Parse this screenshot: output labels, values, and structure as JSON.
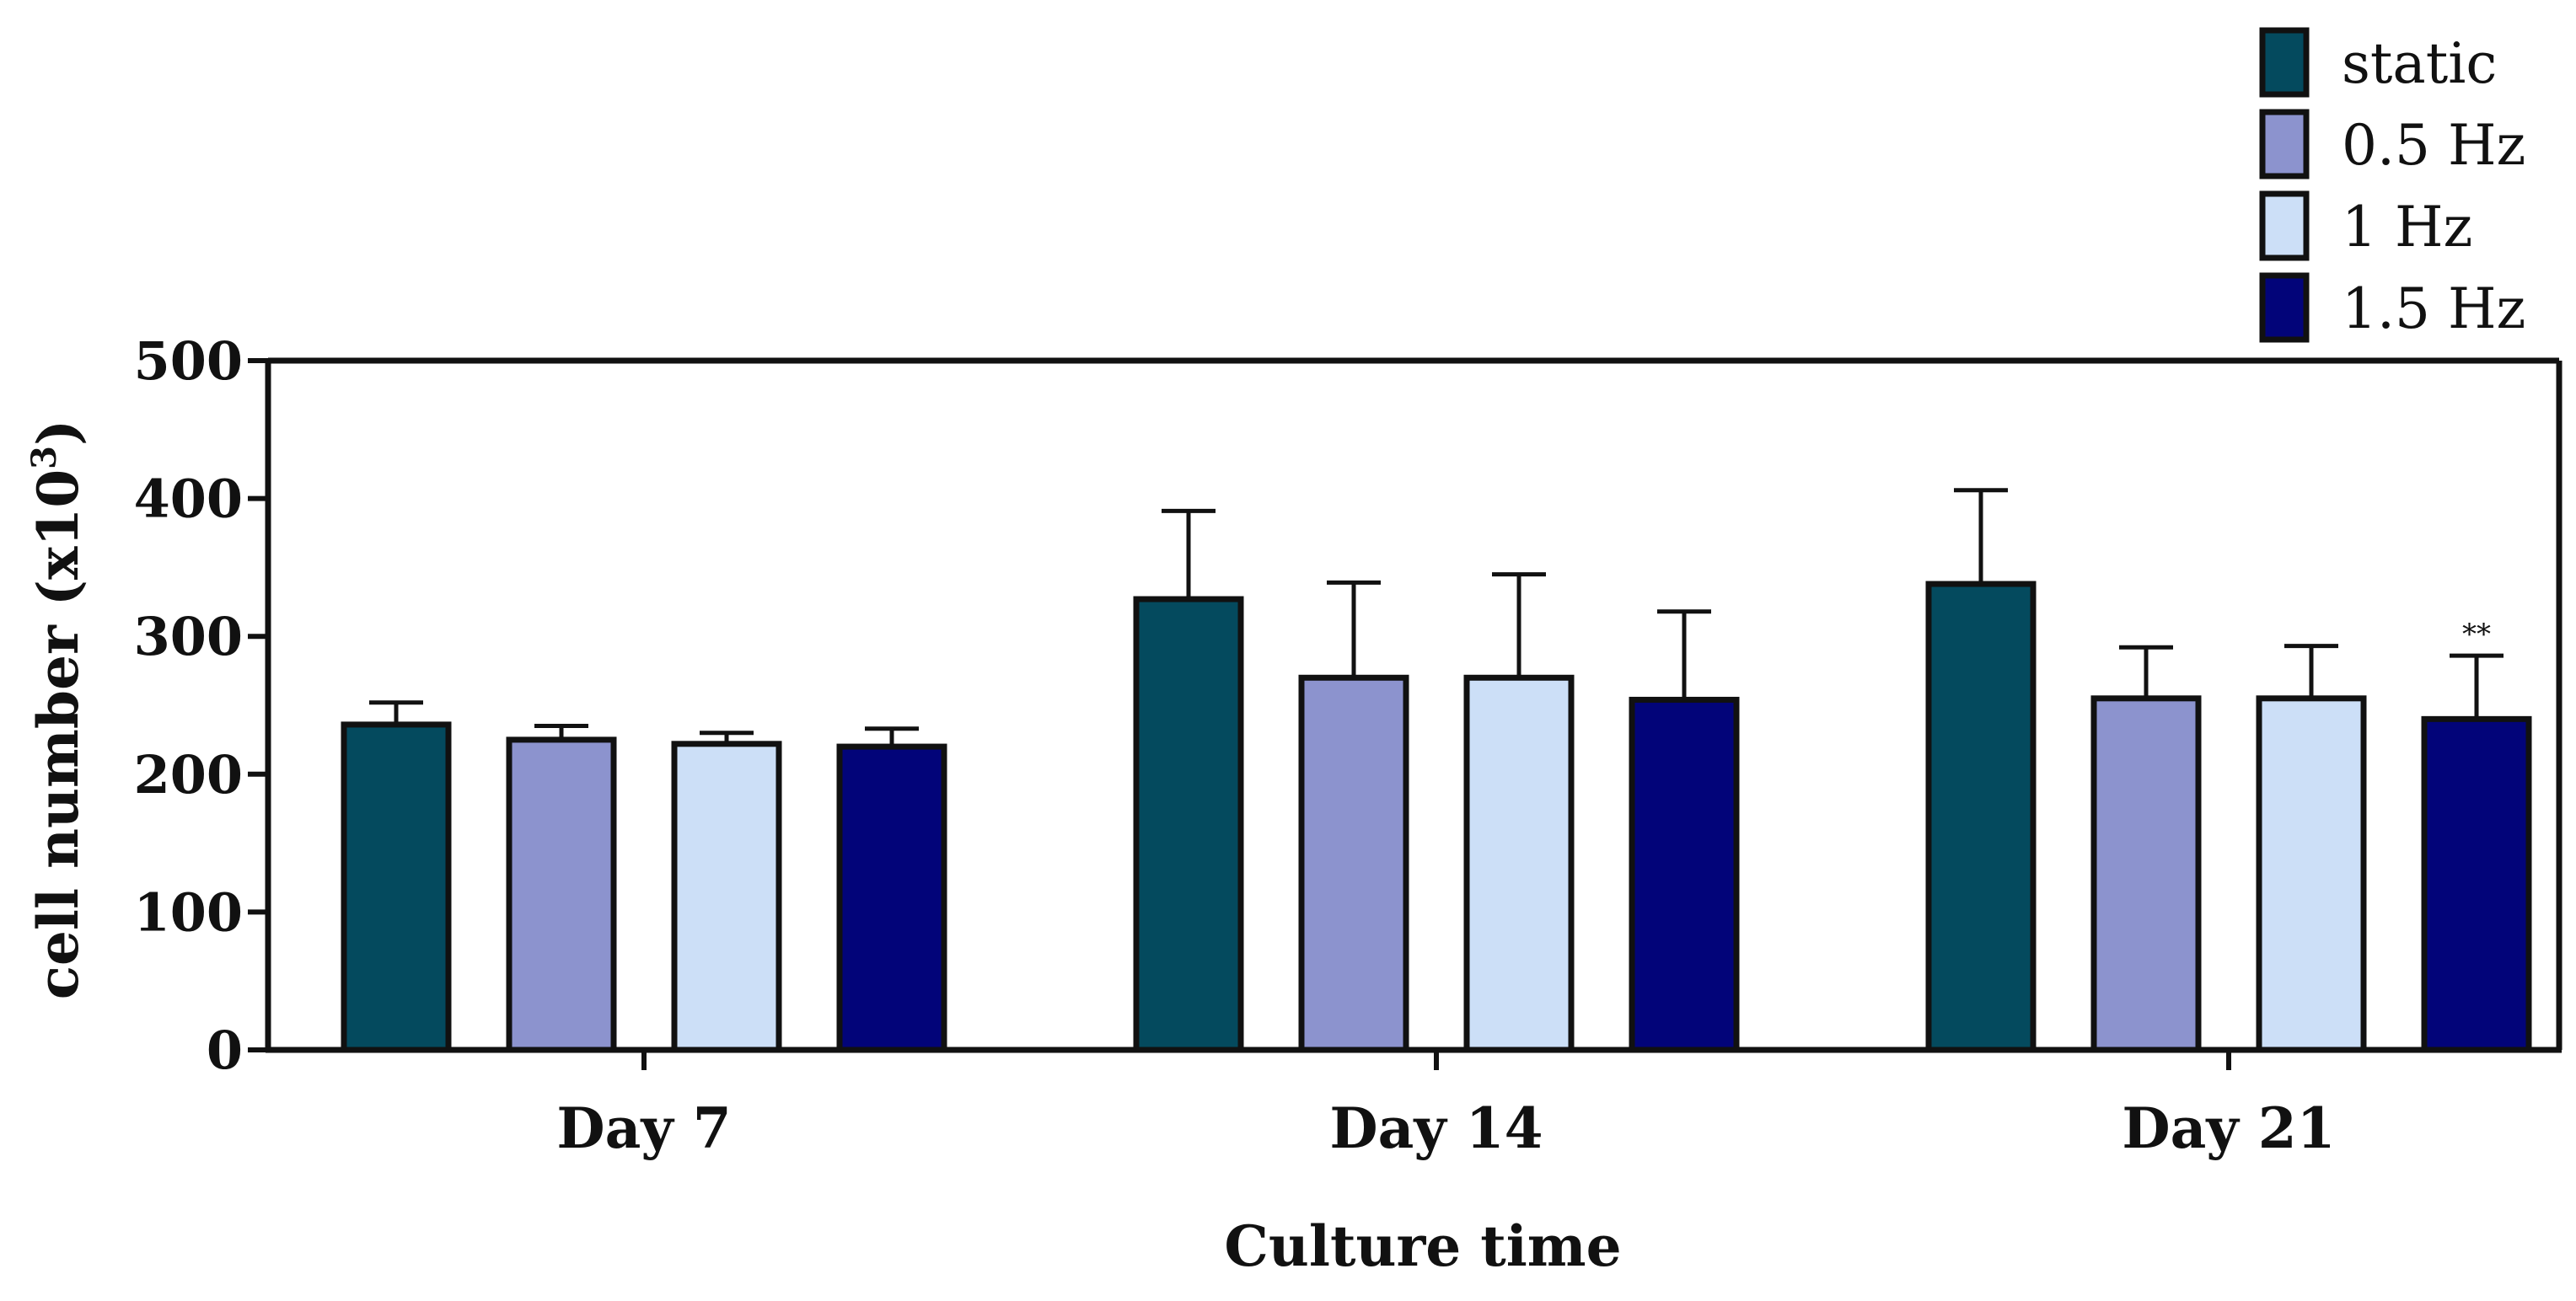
{
  "chart_data": {
    "type": "bar",
    "title": "",
    "xlabel": "Culture time",
    "ylabel_main": "cell number (x10",
    "ylabel_sup": "3",
    "ylabel_close": ")",
    "ylim": [
      0,
      500
    ],
    "yticks": [
      0,
      100,
      200,
      300,
      400,
      500
    ],
    "categories": [
      "Day 7",
      "Day 14",
      "Day 21"
    ],
    "series": [
      {
        "name": "static",
        "color": "#044A5E",
        "values": [
          236,
          327,
          338
        ],
        "errors": [
          16,
          64,
          68
        ]
      },
      {
        "name": "0.5 Hz",
        "color": "#8C93CE",
        "values": [
          225,
          270,
          255
        ],
        "errors": [
          10,
          69,
          37
        ]
      },
      {
        "name": "1 Hz",
        "color": "#CCDFF7",
        "values": [
          222,
          270,
          255
        ],
        "errors": [
          8,
          75,
          38
        ]
      },
      {
        "name": "1.5 Hz",
        "color": "#020479",
        "values": [
          220,
          254,
          240
        ],
        "errors": [
          13,
          64,
          46
        ]
      }
    ],
    "annotations": [
      {
        "text": "**",
        "category": "Day 21",
        "series": "1.5 Hz"
      }
    ],
    "legend_position": "top-right",
    "grid": false
  }
}
